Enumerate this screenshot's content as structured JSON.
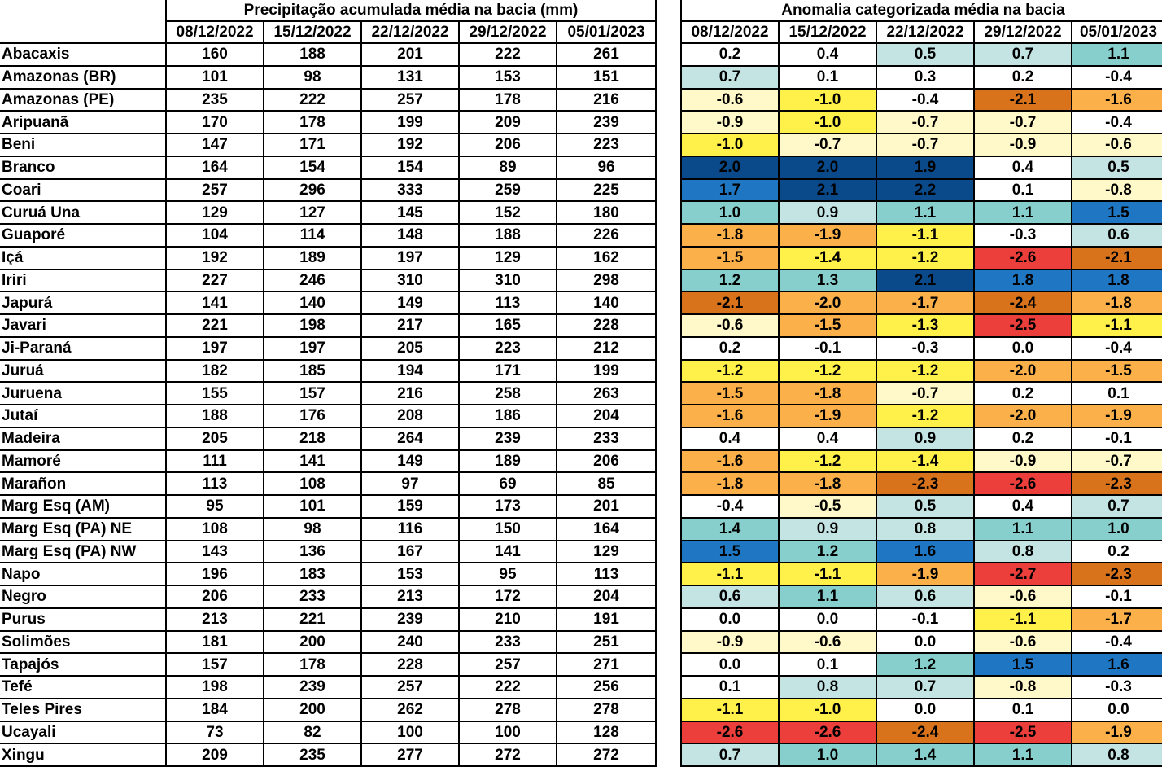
{
  "left_title": "Precipitação acumulada média na bacia (mm)",
  "right_title": "Anomalia categorizada média na bacia",
  "dates": [
    "08/12/2022",
    "15/12/2022",
    "22/12/2022",
    "29/12/2022",
    "05/01/2023"
  ],
  "rows": [
    {
      "name": "Abacaxis",
      "precip": [
        160,
        188,
        201,
        222,
        261
      ],
      "anom": [
        "0.2",
        "0.4",
        "0.5",
        "0.7",
        "1.1"
      ]
    },
    {
      "name": "Amazonas (BR)",
      "precip": [
        101,
        98,
        131,
        153,
        151
      ],
      "anom": [
        "0.7",
        "0.1",
        "0.3",
        "0.2",
        "-0.4"
      ]
    },
    {
      "name": "Amazonas (PE)",
      "precip": [
        235,
        222,
        257,
        178,
        216
      ],
      "anom": [
        "-0.6",
        "-1.0",
        "-0.4",
        "-2.1",
        "-1.6"
      ]
    },
    {
      "name": "Aripuanã",
      "precip": [
        170,
        178,
        199,
        209,
        239
      ],
      "anom": [
        "-0.9",
        "-1.0",
        "-0.7",
        "-0.7",
        "-0.4"
      ]
    },
    {
      "name": "Beni",
      "precip": [
        147,
        171,
        192,
        206,
        223
      ],
      "anom": [
        "-1.0",
        "-0.7",
        "-0.7",
        "-0.9",
        "-0.6"
      ]
    },
    {
      "name": "Branco",
      "precip": [
        164,
        154,
        154,
        89,
        96
      ],
      "anom": [
        "2.0",
        "2.0",
        "1.9",
        "0.4",
        "0.5"
      ]
    },
    {
      "name": "Coari",
      "precip": [
        257,
        296,
        333,
        259,
        225
      ],
      "anom": [
        "1.7",
        "2.1",
        "2.2",
        "0.1",
        "-0.8"
      ]
    },
    {
      "name": "Curuá Una",
      "precip": [
        129,
        127,
        145,
        152,
        180
      ],
      "anom": [
        "1.0",
        "0.9",
        "1.1",
        "1.1",
        "1.5"
      ]
    },
    {
      "name": "Guaporé",
      "precip": [
        104,
        114,
        148,
        188,
        226
      ],
      "anom": [
        "-1.8",
        "-1.9",
        "-1.1",
        "-0.3",
        "0.6"
      ]
    },
    {
      "name": "Içá",
      "precip": [
        192,
        189,
        197,
        129,
        162
      ],
      "anom": [
        "-1.5",
        "-1.4",
        "-1.2",
        "-2.6",
        "-2.1"
      ]
    },
    {
      "name": "Iriri",
      "precip": [
        227,
        246,
        310,
        310,
        298
      ],
      "anom": [
        "1.2",
        "1.3",
        "2.1",
        "1.8",
        "1.8"
      ]
    },
    {
      "name": "Japurá",
      "precip": [
        141,
        140,
        149,
        113,
        140
      ],
      "anom": [
        "-2.1",
        "-2.0",
        "-1.7",
        "-2.4",
        "-1.8"
      ]
    },
    {
      "name": "Javari",
      "precip": [
        221,
        198,
        217,
        165,
        228
      ],
      "anom": [
        "-0.6",
        "-1.5",
        "-1.3",
        "-2.5",
        "-1.1"
      ]
    },
    {
      "name": "Ji-Paraná",
      "precip": [
        197,
        197,
        205,
        223,
        212
      ],
      "anom": [
        "0.2",
        "-0.1",
        "-0.3",
        "0.0",
        "-0.4"
      ]
    },
    {
      "name": "Juruá",
      "precip": [
        182,
        185,
        194,
        171,
        199
      ],
      "anom": [
        "-1.2",
        "-1.2",
        "-1.2",
        "-2.0",
        "-1.5"
      ]
    },
    {
      "name": "Juruena",
      "precip": [
        155,
        157,
        216,
        258,
        263
      ],
      "anom": [
        "-1.5",
        "-1.8",
        "-0.7",
        "0.2",
        "0.1"
      ]
    },
    {
      "name": "Jutaí",
      "precip": [
        188,
        176,
        208,
        186,
        204
      ],
      "anom": [
        "-1.6",
        "-1.9",
        "-1.2",
        "-2.0",
        "-1.9"
      ]
    },
    {
      "name": "Madeira",
      "precip": [
        205,
        218,
        264,
        239,
        233
      ],
      "anom": [
        "0.4",
        "0.4",
        "0.9",
        "0.2",
        "-0.1"
      ]
    },
    {
      "name": "Mamoré",
      "precip": [
        111,
        141,
        149,
        189,
        206
      ],
      "anom": [
        "-1.6",
        "-1.2",
        "-1.4",
        "-0.9",
        "-0.7"
      ]
    },
    {
      "name": "Marañon",
      "precip": [
        113,
        108,
        97,
        69,
        85
      ],
      "anom": [
        "-1.8",
        "-1.8",
        "-2.3",
        "-2.6",
        "-2.3"
      ]
    },
    {
      "name": "Marg Esq (AM)",
      "precip": [
        95,
        101,
        159,
        173,
        201
      ],
      "anom": [
        "-0.4",
        "-0.5",
        "0.5",
        "0.4",
        "0.7"
      ]
    },
    {
      "name": "Marg Esq (PA) NE",
      "precip": [
        108,
        98,
        116,
        150,
        164
      ],
      "anom": [
        "1.4",
        "0.9",
        "0.8",
        "1.1",
        "1.0"
      ]
    },
    {
      "name": "Marg Esq (PA) NW",
      "precip": [
        143,
        136,
        167,
        141,
        129
      ],
      "anom": [
        "1.5",
        "1.2",
        "1.6",
        "0.8",
        "0.2"
      ]
    },
    {
      "name": "Napo",
      "precip": [
        196,
        183,
        153,
        95,
        113
      ],
      "anom": [
        "-1.1",
        "-1.1",
        "-1.9",
        "-2.7",
        "-2.3"
      ]
    },
    {
      "name": "Negro",
      "precip": [
        206,
        233,
        213,
        172,
        204
      ],
      "anom": [
        "0.6",
        "1.1",
        "0.6",
        "-0.6",
        "-0.1"
      ]
    },
    {
      "name": "Purus",
      "precip": [
        213,
        221,
        239,
        210,
        191
      ],
      "anom": [
        "0.0",
        "0.0",
        "-0.1",
        "-1.1",
        "-1.7"
      ]
    },
    {
      "name": "Solimões",
      "precip": [
        181,
        200,
        240,
        233,
        251
      ],
      "anom": [
        "-0.9",
        "-0.6",
        "0.0",
        "-0.6",
        "-0.4"
      ]
    },
    {
      "name": "Tapajós",
      "precip": [
        157,
        178,
        228,
        257,
        271
      ],
      "anom": [
        "0.0",
        "0.1",
        "1.2",
        "1.5",
        "1.6"
      ]
    },
    {
      "name": "Tefé",
      "precip": [
        198,
        239,
        257,
        222,
        256
      ],
      "anom": [
        "0.1",
        "0.8",
        "0.7",
        "-0.8",
        "-0.3"
      ]
    },
    {
      "name": "Teles Pires",
      "precip": [
        184,
        200,
        262,
        278,
        278
      ],
      "anom": [
        "-1.1",
        "-1.0",
        "0.0",
        "0.1",
        "0.0"
      ]
    },
    {
      "name": "Ucayali",
      "precip": [
        73,
        82,
        100,
        100,
        128
      ],
      "anom": [
        "-2.6",
        "-2.6",
        "-2.4",
        "-2.5",
        "-1.9"
      ]
    },
    {
      "name": "Xingu",
      "precip": [
        209,
        235,
        277,
        272,
        272
      ],
      "anom": [
        "0.7",
        "1.0",
        "1.4",
        "1.1",
        "0.8"
      ]
    }
  ],
  "anomaly_colors": {
    "neutral": "#ffffff",
    "pos_light": "#c4e4e4",
    "pos_mid": "#86cfcc",
    "pos_strong": "#1f77c4",
    "pos_extreme": "#0b4a8a",
    "neg_light": "#fff8c8",
    "neg_mid": "#fff04a",
    "neg_strong": "#fbb04a",
    "neg_severe": "#d8731c",
    "neg_extreme": "#ec3f3c"
  }
}
